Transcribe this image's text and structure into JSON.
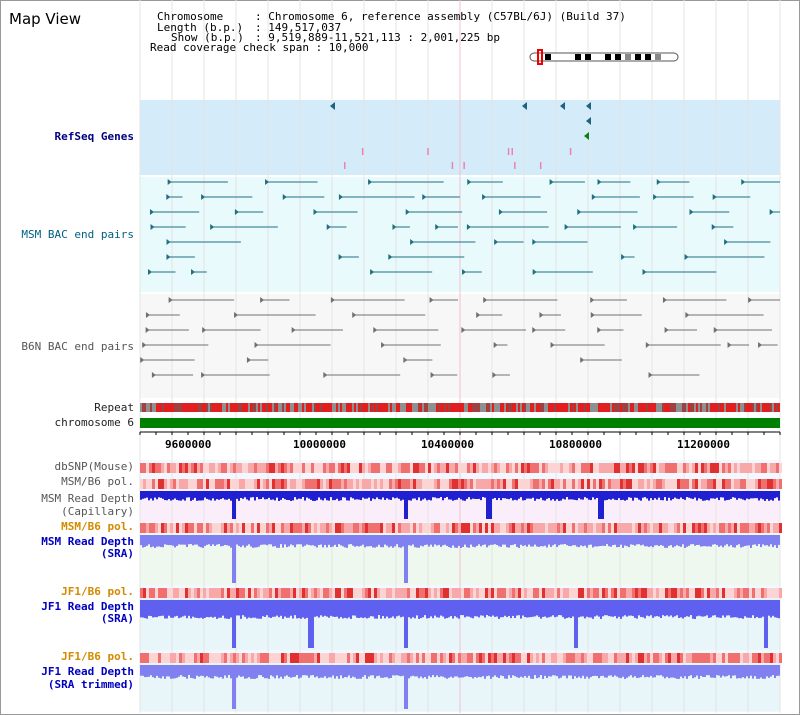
{
  "view_title": "Map View",
  "header": {
    "chromosome_key": "Chromosome",
    "chromosome_val": ": Chromosome 6, reference assembly (C57BL/6J) (Build 37)",
    "length_key": "Length (b.p.)",
    "length_val": ": 149,517,037",
    "show_key": "Show (b.p.)",
    "show_val": ": 9,519,889-11,521,113 : 2,001,225 bp",
    "coverage": "Read coverage check span : 10,000"
  },
  "tracks": {
    "refseq": "RefSeq Genes",
    "msm_bac": "MSM BAC end pairs",
    "b6n_bac": "B6N BAC end pairs",
    "repeat": "Repeat",
    "chromosome": "chromosome 6",
    "dbsnp": "dbSNP(Mouse)",
    "msm_pol_1": "MSM/B6 pol.",
    "msm_depth_cap_1": "MSM Read Depth",
    "msm_depth_cap_2": "(Capillary)",
    "msm_pol_2": "MSM/B6 pol.",
    "msm_depth_sra_1": "MSM Read Depth",
    "msm_depth_sra_2": "(SRA)",
    "jf1_pol_1": "JF1/B6 pol.",
    "jf1_depth_sra_1": "JF1 Read Depth",
    "jf1_depth_sra_2": "(SRA)",
    "jf1_pol_2": "JF1/B6 pol.",
    "jf1_depth_trim_1": "JF1 Read Depth",
    "jf1_depth_trim_2": "(SRA trimmed)"
  },
  "axis_ticks": [
    "9600000",
    "10000000",
    "10400000",
    "10800000",
    "11200000"
  ],
  "colors": {
    "refseq_bg": "#d4ecf9",
    "bac_bg": "#e8fafc",
    "chrom_bar": "#008000",
    "depth_bar": "#3030e0",
    "snp_red": "#e03030"
  }
}
